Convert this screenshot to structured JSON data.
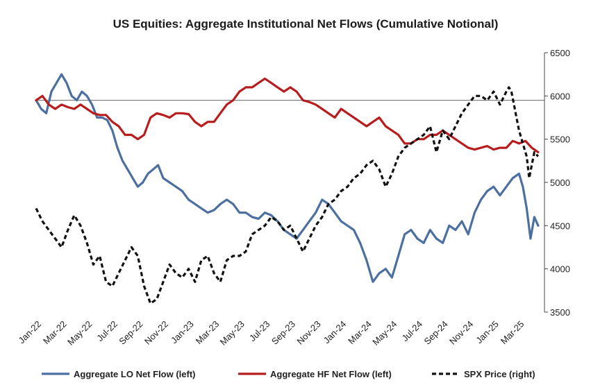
{
  "chart_data": {
    "type": "line",
    "title": "US Equities: Aggregate Institutional Net Flows (Cumulative Notional)",
    "x_tick_labels": [
      "Jan-22",
      "Mar-22",
      "May-22",
      "Jul-22",
      "Sep-22",
      "Nov-22",
      "Jan-23",
      "Mar-23",
      "May-23",
      "Jul-23",
      "Sep-23",
      "Nov-23",
      "Jan-24",
      "Mar-24",
      "May-24",
      "Jul-24",
      "Sep-24",
      "Nov-24",
      "Jan-25",
      "Mar-25"
    ],
    "x_range": [
      0,
      40
    ],
    "y_right": {
      "label": "",
      "range": [
        3500,
        6500
      ],
      "ticks": [
        "3500",
        "4000",
        "4500",
        "5000",
        "5500",
        "6000",
        "6500"
      ]
    },
    "y_left": {
      "label": "",
      "note": "unlabeled axis; series plotted in SPX-equivalent units",
      "range": [
        3500,
        6500
      ],
      "zero_line": 5950
    },
    "series": [
      {
        "name": "Aggregate LO Net Flow (left)",
        "axis": "left",
        "color": "#4a6fa0",
        "style": "solid",
        "x": [
          0,
          0.4,
          0.8,
          1.2,
          1.6,
          2.0,
          2.4,
          2.8,
          3.2,
          3.6,
          4.0,
          4.4,
          4.8,
          5.2,
          5.6,
          6.0,
          6.4,
          6.8,
          7.2,
          7.6,
          8.0,
          8.4,
          8.8,
          9.2,
          9.6,
          10.0,
          10.5,
          11.0,
          11.5,
          12.0,
          12.5,
          13.0,
          13.5,
          14.0,
          14.5,
          15.0,
          15.5,
          16.0,
          16.5,
          17.0,
          17.5,
          18.0,
          18.5,
          19.0,
          19.5,
          20.0,
          20.5,
          21.0,
          21.5,
          22.0,
          22.5,
          23.0,
          23.5,
          24.0,
          24.5,
          25.0,
          25.5,
          26.0,
          26.5,
          27.0,
          27.5,
          28.0,
          28.5,
          29.0,
          29.5,
          30.0,
          30.5,
          31.0,
          31.5,
          32.0,
          32.5,
          33.0,
          33.5,
          34.0,
          34.5,
          35.0,
          35.5,
          36.0,
          36.5,
          37.0,
          37.5,
          38.0,
          38.3,
          38.6,
          38.9,
          39.2,
          39.5
        ],
        "values": [
          5950,
          5850,
          5800,
          6050,
          6150,
          6250,
          6150,
          6000,
          5950,
          6050,
          6000,
          5900,
          5750,
          5750,
          5720,
          5600,
          5400,
          5250,
          5150,
          5050,
          4950,
          5000,
          5100,
          5150,
          5200,
          5050,
          5000,
          4950,
          4900,
          4800,
          4750,
          4700,
          4650,
          4680,
          4750,
          4800,
          4750,
          4650,
          4650,
          4600,
          4580,
          4650,
          4620,
          4550,
          4450,
          4400,
          4350,
          4450,
          4550,
          4650,
          4800,
          4750,
          4650,
          4550,
          4500,
          4450,
          4300,
          4100,
          3850,
          3950,
          4000,
          3900,
          4150,
          4400,
          4450,
          4350,
          4300,
          4450,
          4350,
          4300,
          4500,
          4450,
          4550,
          4400,
          4650,
          4800,
          4900,
          4950,
          4850,
          4950,
          5050,
          5100,
          4950,
          4700,
          4350,
          4600,
          4500
        ]
      },
      {
        "name": "Aggregate HF Net Flow (left)",
        "axis": "left",
        "color": "#b81c1c",
        "style": "solid",
        "x": [
          0,
          0.5,
          1.0,
          1.5,
          2.0,
          2.5,
          3.0,
          3.5,
          4.0,
          4.5,
          5.0,
          5.5,
          6.0,
          6.5,
          7.0,
          7.5,
          8.0,
          8.5,
          9.0,
          9.5,
          10.0,
          10.5,
          11.0,
          11.5,
          12.0,
          12.5,
          13.0,
          13.5,
          14.0,
          14.5,
          15.0,
          15.5,
          16.0,
          16.5,
          17.0,
          17.5,
          18.0,
          18.5,
          19.0,
          19.5,
          20.0,
          20.5,
          21.0,
          21.5,
          22.0,
          22.5,
          23.0,
          23.5,
          24.0,
          24.5,
          25.0,
          25.5,
          26.0,
          26.5,
          27.0,
          27.5,
          28.0,
          28.5,
          29.0,
          29.5,
          30.0,
          30.5,
          31.0,
          31.5,
          32.0,
          32.5,
          33.0,
          33.5,
          34.0,
          34.5,
          35.0,
          35.5,
          36.0,
          36.5,
          37.0,
          37.5,
          38.0,
          38.5,
          39.0,
          39.5
        ],
        "values": [
          5950,
          6000,
          5900,
          5850,
          5900,
          5870,
          5850,
          5900,
          5850,
          5800,
          5780,
          5780,
          5700,
          5650,
          5550,
          5550,
          5500,
          5550,
          5750,
          5800,
          5780,
          5750,
          5800,
          5800,
          5790,
          5700,
          5650,
          5700,
          5700,
          5800,
          5900,
          5950,
          6050,
          6100,
          6100,
          6150,
          6200,
          6150,
          6100,
          6050,
          6100,
          6050,
          5950,
          5930,
          5900,
          5850,
          5800,
          5750,
          5850,
          5800,
          5750,
          5700,
          5650,
          5700,
          5750,
          5650,
          5600,
          5550,
          5450,
          5450,
          5500,
          5500,
          5550,
          5550,
          5600,
          5550,
          5500,
          5450,
          5400,
          5380,
          5400,
          5420,
          5380,
          5400,
          5400,
          5480,
          5450,
          5480,
          5400,
          5350
        ]
      },
      {
        "name": "SPX Price (right)",
        "axis": "right",
        "color": "#111111",
        "style": "dashed",
        "x": [
          0,
          0.5,
          1.0,
          1.5,
          2.0,
          2.5,
          3.0,
          3.5,
          4.0,
          4.5,
          5.0,
          5.5,
          6.0,
          6.5,
          7.0,
          7.5,
          8.0,
          8.5,
          9.0,
          9.5,
          10.0,
          10.5,
          11.0,
          11.5,
          12.0,
          12.5,
          13.0,
          13.5,
          14.0,
          14.5,
          15.0,
          15.5,
          16.0,
          16.5,
          17.0,
          17.5,
          18.0,
          18.5,
          19.0,
          19.5,
          20.0,
          20.5,
          21.0,
          21.5,
          22.0,
          22.5,
          23.0,
          23.5,
          24.0,
          24.5,
          25.0,
          25.5,
          26.0,
          26.5,
          27.0,
          27.5,
          28.0,
          28.5,
          29.0,
          29.5,
          30.0,
          30.5,
          31.0,
          31.5,
          32.0,
          32.5,
          33.0,
          33.5,
          34.0,
          34.5,
          35.0,
          35.5,
          36.0,
          36.5,
          37.0,
          37.2,
          37.4,
          37.6,
          37.8,
          38.0,
          38.2,
          38.4,
          38.6,
          38.8,
          39.0,
          39.2,
          39.5
        ],
        "values": [
          4700,
          4550,
          4450,
          4350,
          4250,
          4450,
          4620,
          4500,
          4300,
          4050,
          4150,
          3850,
          3800,
          3950,
          4100,
          4250,
          4150,
          3800,
          3600,
          3650,
          3850,
          4050,
          3950,
          3900,
          4000,
          3850,
          4100,
          4150,
          3950,
          3850,
          4100,
          4150,
          4150,
          4200,
          4400,
          4450,
          4500,
          4600,
          4550,
          4450,
          4500,
          4350,
          4200,
          4350,
          4500,
          4600,
          4750,
          4800,
          4900,
          4950,
          5050,
          5100,
          5200,
          5250,
          5150,
          4950,
          5100,
          5300,
          5400,
          5450,
          5500,
          5550,
          5650,
          5350,
          5600,
          5500,
          5650,
          5800,
          5900,
          6000,
          6000,
          5950,
          6050,
          5900,
          6050,
          6100,
          6050,
          5900,
          5750,
          5600,
          5500,
          5400,
          5300,
          5050,
          5200,
          5350,
          5300
        ]
      }
    ],
    "legend": {
      "placement": "bottom",
      "entries": [
        "Aggregate LO Net Flow (left)",
        "Aggregate HF Net Flow (left)",
        "SPX Price (right)"
      ]
    },
    "grid": false
  }
}
